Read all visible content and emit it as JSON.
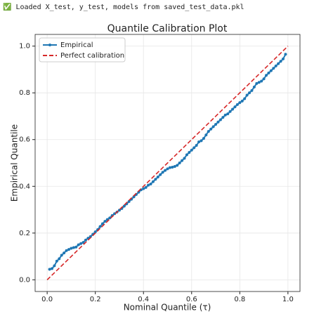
{
  "header": {
    "text": "✅ Loaded X_test, y_test, models from saved_test_data.pkl"
  },
  "chart_data": {
    "type": "line",
    "title": "Quantile Calibration Plot",
    "x_label": "Nominal Quantile (τ)",
    "y_label": "Empirical Quantile",
    "xlim": [
      -0.05,
      1.05
    ],
    "ylim": [
      -0.05,
      1.05
    ],
    "xticks": [
      {
        "value": 0,
        "label": "0.0"
      },
      0.2,
      0.4,
      0.6,
      0.8,
      {
        "value": 1,
        "label": "1.0"
      }
    ],
    "yticks": [
      {
        "value": 0,
        "label": "0.0"
      },
      0.2,
      0.4,
      0.6,
      0.8,
      {
        "value": 1,
        "label": "1.0"
      }
    ],
    "grid": true,
    "legend": "upper left",
    "series": [
      {
        "name": "Empirical",
        "color": "#1f77b4",
        "style": "solid",
        "markers": true,
        "x": [
          0.01,
          0.02,
          0.03,
          0.04,
          0.05,
          0.06,
          0.07,
          0.08,
          0.09,
          0.1,
          0.11,
          0.12,
          0.13,
          0.14,
          0.15,
          0.16,
          0.17,
          0.18,
          0.19,
          0.2,
          0.21,
          0.22,
          0.23,
          0.24,
          0.25,
          0.26,
          0.27,
          0.28,
          0.29,
          0.3,
          0.31,
          0.32,
          0.33,
          0.34,
          0.35,
          0.36,
          0.37,
          0.38,
          0.39,
          0.4,
          0.41,
          0.42,
          0.43,
          0.44,
          0.45,
          0.46,
          0.47,
          0.48,
          0.49,
          0.5,
          0.51,
          0.52,
          0.53,
          0.54,
          0.55,
          0.56,
          0.57,
          0.58,
          0.59,
          0.6,
          0.61,
          0.62,
          0.63,
          0.64,
          0.65,
          0.66,
          0.67,
          0.68,
          0.69,
          0.7,
          0.71,
          0.72,
          0.73,
          0.74,
          0.75,
          0.76,
          0.77,
          0.78,
          0.79,
          0.8,
          0.81,
          0.82,
          0.83,
          0.84,
          0.85,
          0.86,
          0.87,
          0.88,
          0.89,
          0.9,
          0.91,
          0.92,
          0.93,
          0.94,
          0.95,
          0.96,
          0.97,
          0.98,
          0.99
        ],
        "values": [
          0.045,
          0.048,
          0.06,
          0.08,
          0.09,
          0.105,
          0.115,
          0.125,
          0.13,
          0.135,
          0.138,
          0.14,
          0.15,
          0.155,
          0.16,
          0.17,
          0.178,
          0.185,
          0.195,
          0.205,
          0.215,
          0.228,
          0.24,
          0.25,
          0.258,
          0.265,
          0.275,
          0.283,
          0.29,
          0.298,
          0.305,
          0.315,
          0.325,
          0.335,
          0.345,
          0.355,
          0.365,
          0.375,
          0.385,
          0.39,
          0.395,
          0.405,
          0.41,
          0.42,
          0.43,
          0.44,
          0.45,
          0.46,
          0.468,
          0.475,
          0.48,
          0.482,
          0.485,
          0.49,
          0.5,
          0.51,
          0.52,
          0.535,
          0.545,
          0.555,
          0.565,
          0.575,
          0.59,
          0.595,
          0.605,
          0.62,
          0.635,
          0.645,
          0.655,
          0.665,
          0.675,
          0.685,
          0.695,
          0.705,
          0.71,
          0.72,
          0.73,
          0.74,
          0.75,
          0.758,
          0.765,
          0.775,
          0.79,
          0.8,
          0.81,
          0.825,
          0.84,
          0.845,
          0.85,
          0.86,
          0.875,
          0.885,
          0.895,
          0.905,
          0.915,
          0.925,
          0.935,
          0.945,
          0.965
        ]
      },
      {
        "name": "Perfect calibration",
        "color": "#d62728",
        "style": "dashed",
        "markers": false,
        "x": [
          0,
          1
        ],
        "values": [
          0,
          1
        ]
      }
    ]
  }
}
